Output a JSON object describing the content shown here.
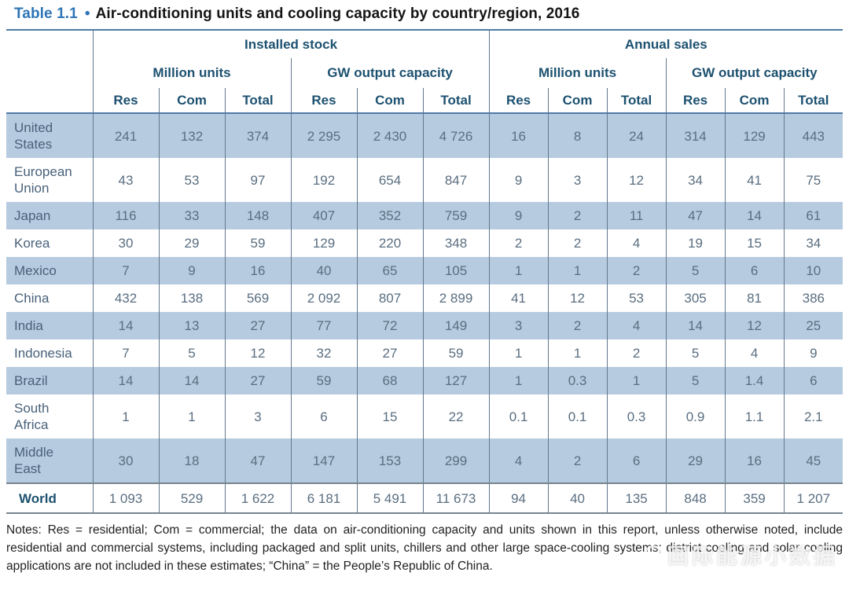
{
  "title": {
    "label": "Table 1.1",
    "bullet": "•",
    "text": "Air-conditioning units and cooling capacity by country/region, 2016"
  },
  "table": {
    "header": {
      "installed": "Installed stock",
      "annual": "Annual sales",
      "million_units": "Million units",
      "gw_capacity": "GW output capacity",
      "sub": [
        "Res",
        "Com",
        "Total"
      ]
    },
    "rows": [
      {
        "name": "United\nStates",
        "values": [
          "241",
          "132",
          "374",
          "2 295",
          "2 430",
          "4 726",
          "16",
          "8",
          "24",
          "314",
          "129",
          "443"
        ]
      },
      {
        "name": "European\nUnion",
        "values": [
          "43",
          "53",
          "97",
          "192",
          "654",
          "847",
          "9",
          "3",
          "12",
          "34",
          "41",
          "75"
        ]
      },
      {
        "name": "Japan",
        "values": [
          "116",
          "33",
          "148",
          "407",
          "352",
          "759",
          "9",
          "2",
          "11",
          "47",
          "14",
          "61"
        ]
      },
      {
        "name": "Korea",
        "values": [
          "30",
          "29",
          "59",
          "129",
          "220",
          "348",
          "2",
          "2",
          "4",
          "19",
          "15",
          "34"
        ]
      },
      {
        "name": "Mexico",
        "values": [
          "7",
          "9",
          "16",
          "40",
          "65",
          "105",
          "1",
          "1",
          "2",
          "5",
          "6",
          "10"
        ]
      },
      {
        "name": "China",
        "values": [
          "432",
          "138",
          "569",
          "2 092",
          "807",
          "2 899",
          "41",
          "12",
          "53",
          "305",
          "81",
          "386"
        ]
      },
      {
        "name": "India",
        "values": [
          "14",
          "13",
          "27",
          "77",
          "72",
          "149",
          "3",
          "2",
          "4",
          "14",
          "12",
          "25"
        ]
      },
      {
        "name": "Indonesia",
        "values": [
          "7",
          "5",
          "12",
          "32",
          "27",
          "59",
          "1",
          "1",
          "2",
          "5",
          "4",
          "9"
        ]
      },
      {
        "name": "Brazil",
        "values": [
          "14",
          "14",
          "27",
          "59",
          "68",
          "127",
          "1",
          "0.3",
          "1",
          "5",
          "1.4",
          "6"
        ]
      },
      {
        "name": "South\nAfrica",
        "values": [
          "1",
          "1",
          "3",
          "6",
          "15",
          "22",
          "0.1",
          "0.1",
          "0.3",
          "0.9",
          "1.1",
          "2.1"
        ]
      },
      {
        "name": "Middle\nEast",
        "values": [
          "30",
          "18",
          "47",
          "147",
          "153",
          "299",
          "4",
          "2",
          "6",
          "29",
          "16",
          "45"
        ]
      },
      {
        "name": "World",
        "values": [
          "1 093",
          "529",
          "1 622",
          "6 181",
          "5 491",
          "11 673",
          "94",
          "40",
          "135",
          "848",
          "359",
          "1 207"
        ],
        "is_total": true
      }
    ]
  },
  "notes": "Notes: Res = residential; Com = commercial; the data on air-conditioning capacity and units shown in this report, unless otherwise noted, include residential and commercial systems, including packaged and split units, chillers and other large space-cooling systems; district cooling and solar cooling applications are not included in these estimates; “China” = the People’s Republic of China.",
  "watermark": "国际能源小数据",
  "colors": {
    "accent_blue": "#2e75b6",
    "header_navy": "#1d5170",
    "row_fill": "#b7cbe0",
    "cell_text": "#5a6e80",
    "rule_blue": "#4e7aa5",
    "rule_gray": "#77868f"
  }
}
